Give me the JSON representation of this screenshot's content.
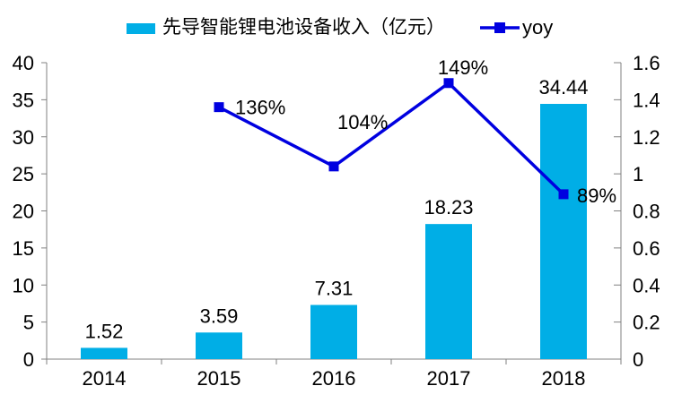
{
  "legend": {
    "revenue_label": "先导智能锂电池设备收入（亿元）",
    "yoy_label": "yoy"
  },
  "colors": {
    "bar": "#00AEE6",
    "line": "#0000E0",
    "axis": "#808080",
    "text": "#000000"
  },
  "chart_data": {
    "type": "bar+line combo",
    "title": "",
    "categories": [
      "2014",
      "2015",
      "2016",
      "2017",
      "2018"
    ],
    "series": [
      {
        "name": "先导智能锂电池设备收入（亿元）",
        "type": "bar",
        "axis": "left",
        "values": [
          1.52,
          3.59,
          7.31,
          18.23,
          34.44
        ],
        "data_labels": [
          "1.52",
          "3.59",
          "7.31",
          "18.23",
          "34.44"
        ]
      },
      {
        "name": "yoy",
        "type": "line",
        "axis": "right",
        "values": [
          null,
          1.36,
          1.04,
          1.49,
          0.89
        ],
        "data_labels": [
          null,
          "136%",
          "104%",
          "149%",
          "89%"
        ]
      }
    ],
    "left_axis": {
      "min": 0,
      "max": 40,
      "tick_step": 5,
      "tick_labels": [
        "0",
        "5",
        "10",
        "15",
        "20",
        "25",
        "30",
        "35",
        "40"
      ]
    },
    "right_axis": {
      "min": 0,
      "max": 1.6,
      "tick_step": 0.2,
      "tick_labels": [
        "0",
        "0.2",
        "0.4",
        "0.6",
        "0.8",
        "1",
        "1.2",
        "1.4",
        "1.6"
      ]
    },
    "grid": false,
    "legend_position": "top"
  }
}
